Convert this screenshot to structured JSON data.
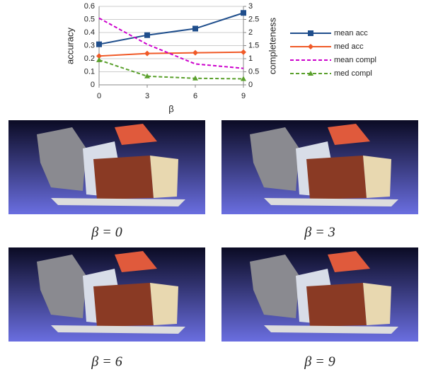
{
  "chart_data": {
    "type": "line",
    "x": [
      0,
      3,
      6,
      9
    ],
    "xlim": [
      0,
      9
    ],
    "xticks": [
      0,
      3,
      6,
      9
    ],
    "xlabel": "β",
    "ylim": [
      0,
      0.6
    ],
    "yticks": [
      0,
      0.1,
      0.2,
      0.3,
      0.4,
      0.5,
      0.6
    ],
    "ylabel": "accuracy",
    "y2lim": [
      0,
      3
    ],
    "y2ticks": [
      0,
      0.5,
      1,
      1.5,
      2,
      2.5,
      3
    ],
    "y2label": "completeness",
    "grid": true,
    "legend": "right",
    "series": [
      {
        "name": "mean acc",
        "color": "#1f4e8c",
        "marker": "square",
        "dash": false,
        "values": [
          0.31,
          0.38,
          0.43,
          0.55
        ]
      },
      {
        "name": "med acc",
        "color": "#f05a28",
        "marker": "diamond",
        "dash": false,
        "values": [
          0.22,
          0.24,
          0.245,
          0.25
        ]
      },
      {
        "name": "mean compl",
        "color": "#cc00cc",
        "marker": "none",
        "dash": true,
        "axis": "y2",
        "values": [
          2.55,
          1.55,
          0.8,
          0.63
        ]
      },
      {
        "name": "med compl",
        "color": "#5aa02c",
        "marker": "triangle",
        "dash": true,
        "axis": "y2",
        "values": [
          0.95,
          0.33,
          0.25,
          0.23
        ]
      }
    ]
  },
  "panels": [
    {
      "caption": "β = 0"
    },
    {
      "caption": "β = 3"
    },
    {
      "caption": "β = 6"
    },
    {
      "caption": "β = 9"
    }
  ]
}
